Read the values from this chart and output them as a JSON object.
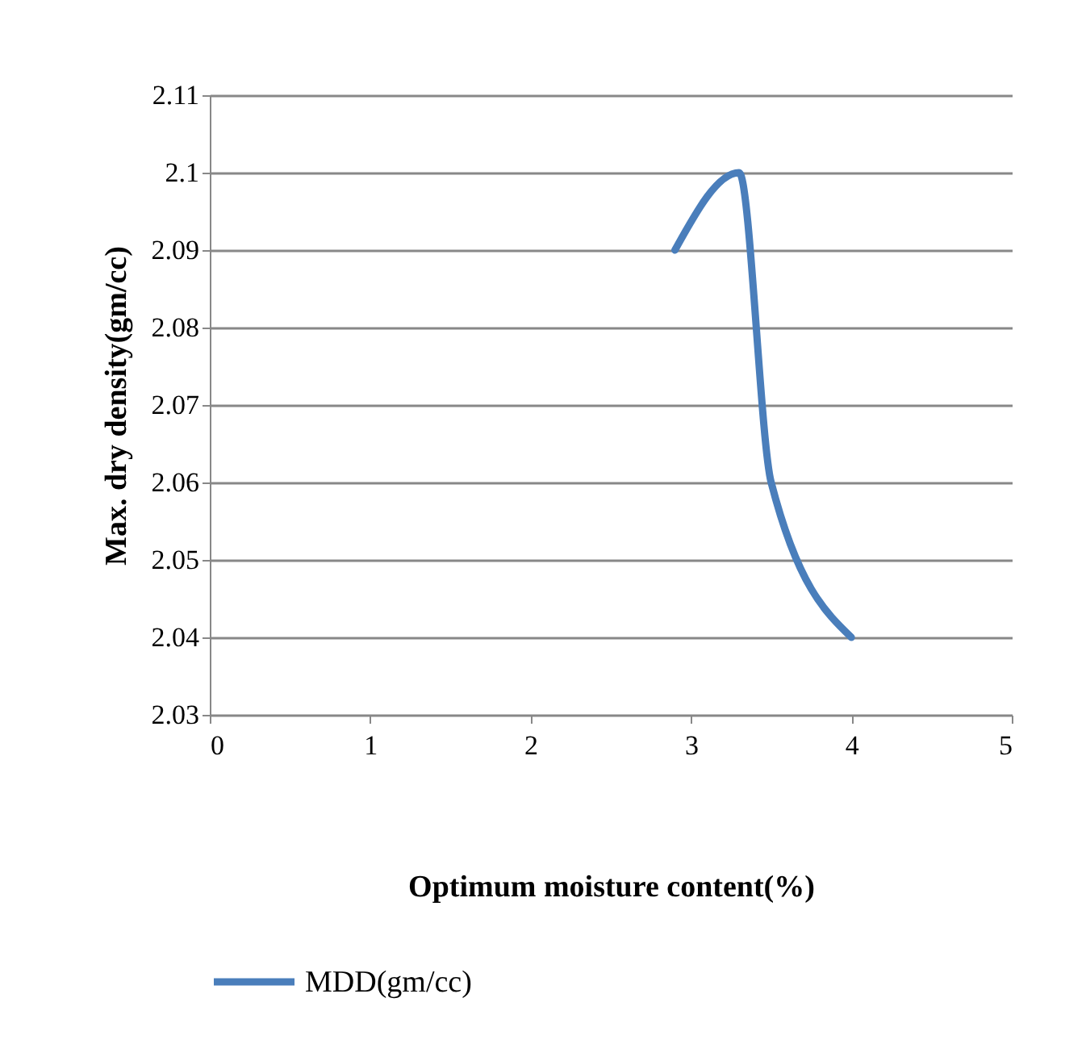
{
  "chart_data": {
    "type": "line",
    "xlabel": "Optimum moisture content(%)",
    "ylabel": "Max. dry density(gm/cc)",
    "series": [
      {
        "name": "MDD(gm/cc)",
        "color": "#4a7ebb",
        "x": [
          2.9,
          3.3,
          3.5,
          4
        ],
        "values": [
          2.09,
          2.1,
          2.06,
          2.04
        ]
      }
    ],
    "xlim": [
      0,
      5
    ],
    "xticks": [
      0,
      1,
      2,
      3,
      4,
      5
    ],
    "ylim": [
      2.03,
      2.11
    ],
    "yticks": [
      2.03,
      2.04,
      2.05,
      2.06,
      2.07,
      2.08,
      2.09,
      2.1,
      2.11
    ],
    "grid": "y",
    "legend": "bottom",
    "marker": "none",
    "line_style": "solid"
  }
}
